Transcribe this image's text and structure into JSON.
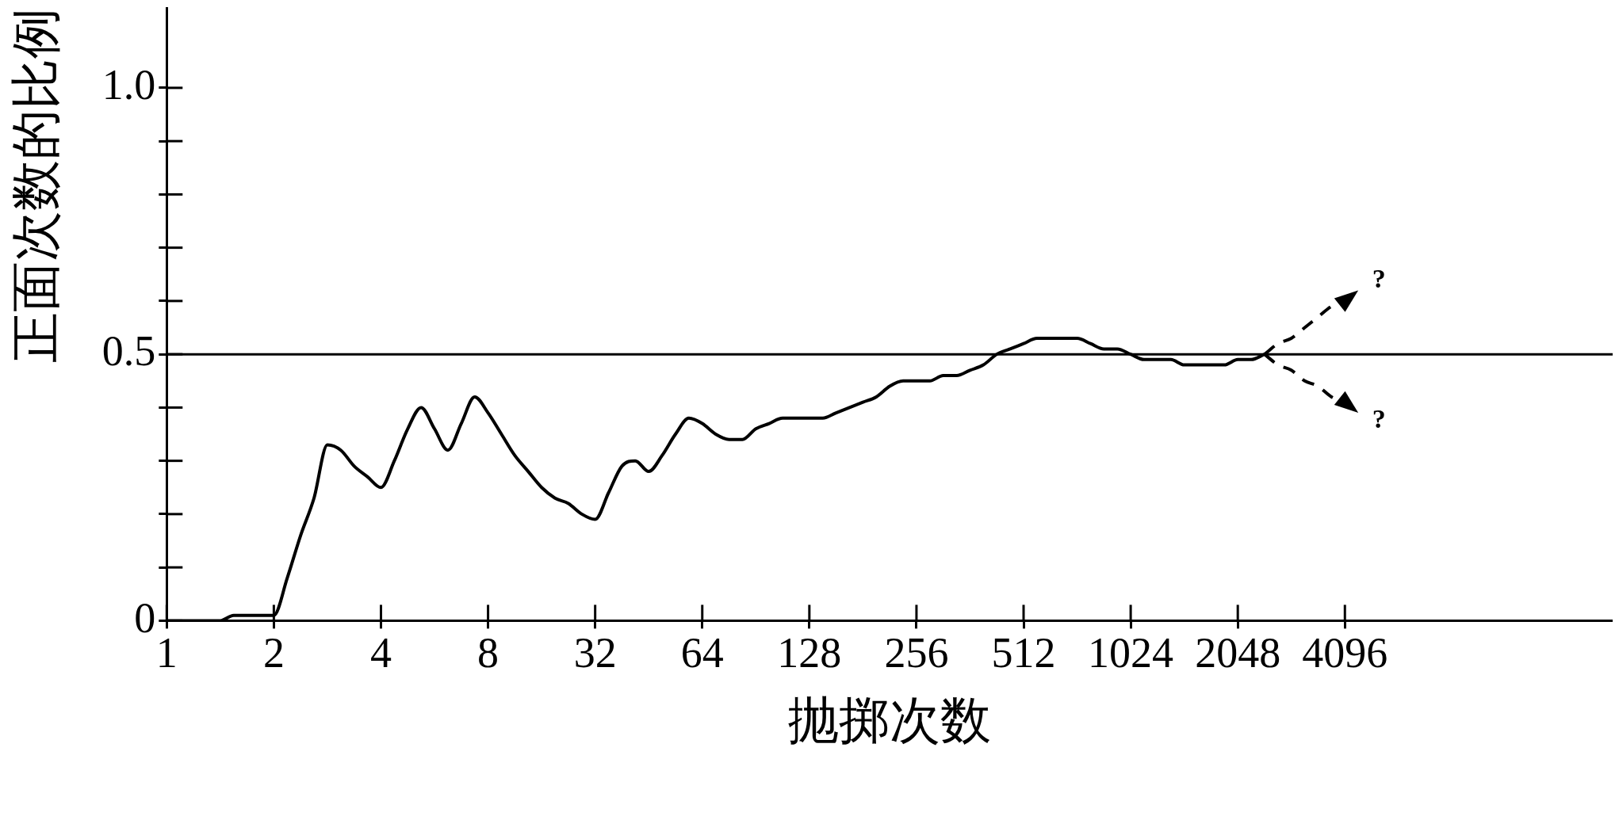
{
  "chart_data": {
    "type": "line",
    "xlabel": "抛掷次数",
    "ylabel": "正面次数的比例",
    "categories": [
      "1",
      null,
      null,
      null,
      null,
      null,
      null,
      null,
      "2",
      null,
      null,
      null,
      null,
      null,
      null,
      null,
      "4",
      null,
      null,
      null,
      null,
      null,
      null,
      null,
      "8",
      null,
      null,
      null,
      null,
      null,
      null,
      null,
      "32",
      null,
      null,
      null,
      null,
      null,
      null,
      null,
      "64",
      null,
      null,
      null,
      null,
      null,
      null,
      null,
      "128",
      null,
      null,
      null,
      null,
      null,
      null,
      null,
      "256",
      null,
      null,
      null,
      null,
      null,
      null,
      null,
      "512",
      null,
      null,
      null,
      null,
      null,
      null,
      null,
      "1024",
      null,
      null,
      null,
      null,
      null,
      null,
      null,
      "2048",
      null,
      null,
      null,
      null,
      null,
      null,
      null,
      "4096",
      null,
      null,
      null,
      null,
      null,
      null,
      null,
      null,
      null,
      null,
      null,
      null,
      null,
      null,
      null,
      null,
      null,
      null,
      null,
      null
    ],
    "ylim": [
      0,
      1.15
    ],
    "yticks": [
      0,
      {
        "value": 0.1,
        "label": null
      },
      {
        "value": 0.2,
        "label": null
      },
      {
        "value": 0.3,
        "label": null
      },
      {
        "value": 0.4,
        "label": null
      },
      0.5,
      {
        "value": 0.6,
        "label": null
      },
      {
        "value": 0.7,
        "label": null
      },
      {
        "value": 0.8,
        "label": null
      },
      {
        "value": 0.9,
        "label": null
      },
      {
        "value": 1,
        "label": "1.0"
      }
    ],
    "series": [
      {
        "color": "#000000",
        "values": [
          0,
          0,
          0,
          0,
          0,
          0.01,
          0.01,
          0.01,
          0.01,
          0.08,
          0.16,
          0.23,
          0.33,
          0.32,
          0.29,
          0.27,
          0.25,
          0.3,
          0.36,
          0.4,
          0.36,
          0.32,
          0.37,
          0.42,
          0.39,
          0.35,
          0.31,
          0.28,
          0.25,
          0.23,
          0.22,
          0.2,
          0.19,
          0.24,
          0.29,
          0.3,
          0.28,
          0.31,
          0.35,
          0.38,
          0.37,
          0.35,
          0.34,
          0.34,
          0.36,
          0.37,
          0.38,
          0.38,
          0.38,
          0.38,
          0.39,
          0.4,
          0.41,
          0.42,
          0.44,
          0.45,
          0.45,
          0.45,
          0.46,
          0.46,
          0.47,
          0.48,
          0.5,
          0.51,
          0.52,
          0.53,
          0.53,
          0.53,
          0.53,
          0.52,
          0.51,
          0.51,
          0.5,
          0.49,
          0.49,
          0.49,
          0.48,
          0.48,
          0.48,
          0.48,
          0.49,
          0.49,
          0.5,
          null,
          null,
          null,
          null,
          null,
          null,
          null,
          null,
          null,
          null,
          null,
          null,
          null,
          null,
          null,
          null,
          null,
          null,
          null,
          null,
          null,
          null,
          null,
          null,
          null,
          null
        ]
      },
      {
        "color": "#000000",
        "line_style": "dashed",
        "values": [
          null,
          null,
          null,
          null,
          null,
          null,
          null,
          null,
          null,
          null,
          null,
          null,
          null,
          null,
          null,
          null,
          null,
          null,
          null,
          null,
          null,
          null,
          null,
          null,
          null,
          null,
          null,
          null,
          null,
          null,
          null,
          null,
          null,
          null,
          null,
          null,
          null,
          null,
          null,
          null,
          null,
          null,
          null,
          null,
          null,
          null,
          null,
          null,
          null,
          null,
          null,
          null,
          null,
          null,
          null,
          null,
          null,
          null,
          null,
          null,
          null,
          null,
          null,
          null,
          null,
          null,
          null,
          null,
          null,
          null,
          null,
          null,
          null,
          null,
          null,
          null,
          null,
          null,
          null,
          null,
          null,
          null,
          0.5,
          0.52,
          0.53,
          0.55,
          0.57,
          0.59,
          0.6,
          0.62,
          null,
          null,
          null,
          null,
          null,
          null,
          null,
          null,
          null,
          null,
          null,
          null,
          null,
          null,
          null,
          null,
          null,
          null,
          null
        ]
      },
      {
        "color": "#000000",
        "line_style": "dashed",
        "values": [
          null,
          null,
          null,
          null,
          null,
          null,
          null,
          null,
          null,
          null,
          null,
          null,
          null,
          null,
          null,
          null,
          null,
          null,
          null,
          null,
          null,
          null,
          null,
          null,
          null,
          null,
          null,
          null,
          null,
          null,
          null,
          null,
          null,
          null,
          null,
          null,
          null,
          null,
          null,
          null,
          null,
          null,
          null,
          null,
          null,
          null,
          null,
          null,
          null,
          null,
          null,
          null,
          null,
          null,
          null,
          null,
          null,
          null,
          null,
          null,
          null,
          null,
          null,
          null,
          null,
          null,
          null,
          null,
          null,
          null,
          null,
          null,
          null,
          null,
          null,
          null,
          null,
          null,
          null,
          null,
          null,
          null,
          0.5,
          0.48,
          0.47,
          0.45,
          0.44,
          0.42,
          0.41,
          0.39,
          null,
          null,
          null,
          null,
          null,
          null,
          null,
          null,
          null,
          null,
          null,
          null,
          null,
          null,
          null,
          null,
          null,
          null,
          null
        ]
      }
    ],
    "ref_lines": [
      {
        "axis": "y",
        "value": 0.5,
        "color": "#000000"
      }
    ],
    "annotations": [
      "?",
      "?"
    ],
    "marker": "none",
    "line_style": "solid"
  }
}
